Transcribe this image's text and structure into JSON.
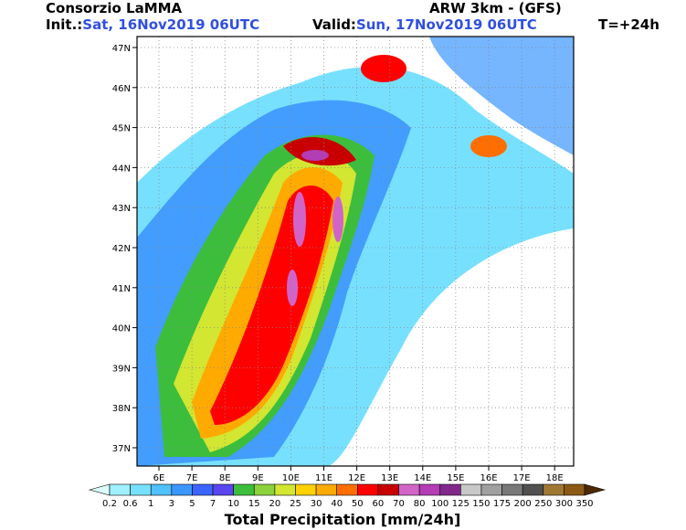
{
  "header": {
    "title": "Consorzio LaMMA",
    "model": "ARW 3km - (GFS)",
    "init_label": "Init.:",
    "init_time": "Sat, 16Nov2019 06UTC",
    "valid_label": "Valid:",
    "valid_time": "Sun, 17Nov2019 06UTC",
    "lead": "T=+24h"
  },
  "map": {
    "lat_ticks": [
      {
        "value": 47,
        "label": "47N"
      },
      {
        "value": 46,
        "label": "46N"
      },
      {
        "value": 45,
        "label": "45N"
      },
      {
        "value": 44,
        "label": "44N"
      },
      {
        "value": 43,
        "label": "43N"
      },
      {
        "value": 42,
        "label": "42N"
      },
      {
        "value": 41,
        "label": "41N"
      },
      {
        "value": 40,
        "label": "40N"
      },
      {
        "value": 39,
        "label": "39N"
      },
      {
        "value": 38,
        "label": "38N"
      },
      {
        "value": 37,
        "label": "37N"
      }
    ],
    "lon_ticks": [
      {
        "value": 6,
        "label": "6E"
      },
      {
        "value": 7,
        "label": "7E"
      },
      {
        "value": 8,
        "label": "8E"
      },
      {
        "value": 9,
        "label": "9E"
      },
      {
        "value": 10,
        "label": "10E"
      },
      {
        "value": 11,
        "label": "11E"
      },
      {
        "value": 12,
        "label": "12E"
      },
      {
        "value": 13,
        "label": "13E"
      },
      {
        "value": 14,
        "label": "14E"
      },
      {
        "value": 15,
        "label": "15E"
      },
      {
        "value": 16,
        "label": "16E"
      },
      {
        "value": 17,
        "label": "17E"
      },
      {
        "value": 18,
        "label": "18E"
      }
    ]
  },
  "colorbar": {
    "title": "Total Precipitation [mm/24h]",
    "labels": [
      "0.2",
      "0.6",
      "1",
      "3",
      "5",
      "7",
      "10",
      "15",
      "20",
      "25",
      "30",
      "40",
      "50",
      "60",
      "70",
      "80",
      "100",
      "125",
      "150",
      "175",
      "200",
      "250",
      "300",
      "350"
    ],
    "colors": [
      "#dcfafa",
      "#a0f0ff",
      "#78e0ff",
      "#50c0ff",
      "#3c96ff",
      "#3c64ff",
      "#5a46f0",
      "#3cbe3c",
      "#8cd23c",
      "#d2e632",
      "#ffd200",
      "#ffaa00",
      "#ff6e00",
      "#ff0000",
      "#c80000",
      "#d264c8",
      "#b43cb4",
      "#82288c",
      "#c8c8c8",
      "#a0a0a0",
      "#787878",
      "#505050",
      "#a07832",
      "#8c5a14",
      "#4b2800"
    ]
  }
}
